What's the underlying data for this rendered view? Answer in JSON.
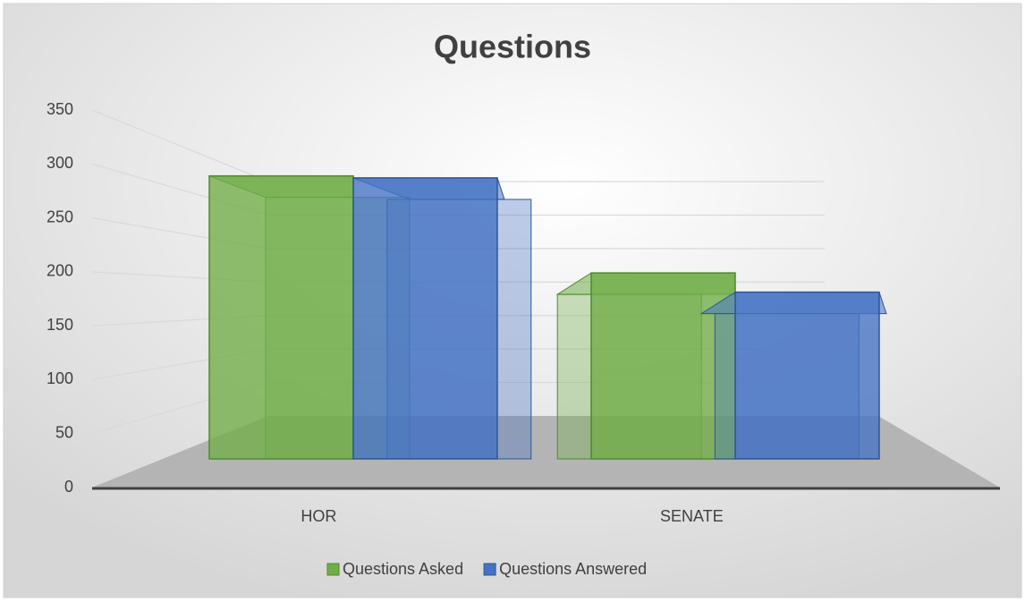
{
  "chart_data": {
    "type": "bar",
    "title": "Questions",
    "categories": [
      "HOR",
      "SENATE"
    ],
    "series": [
      {
        "name": "Questions Asked",
        "color": "#70ad47",
        "values": [
          280,
          184
        ]
      },
      {
        "name": "Questions Answered",
        "color": "#4472c4",
        "values": [
          278,
          165
        ]
      }
    ],
    "ylim": [
      0,
      350
    ],
    "yticks": [
      0,
      50,
      100,
      150,
      200,
      250,
      300,
      350
    ],
    "grid": true,
    "legend": "bottom"
  }
}
